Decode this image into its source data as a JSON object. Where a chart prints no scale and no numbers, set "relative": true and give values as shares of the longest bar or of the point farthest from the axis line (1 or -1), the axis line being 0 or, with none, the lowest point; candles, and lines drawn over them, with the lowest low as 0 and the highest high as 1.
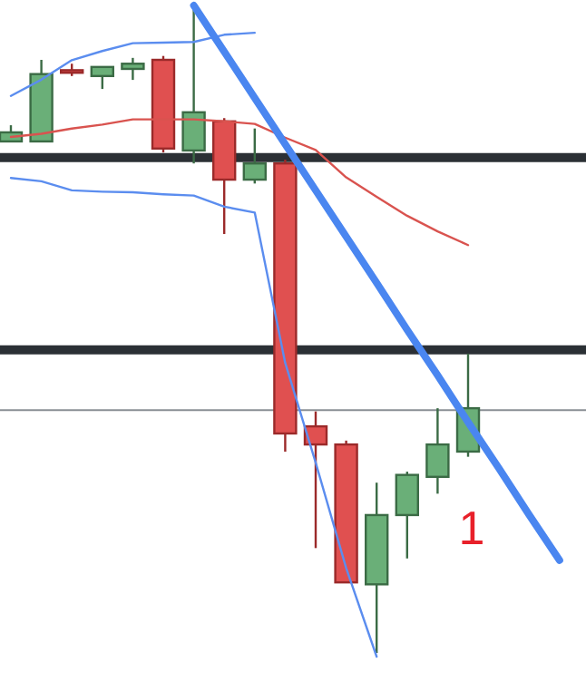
{
  "chart_data": [
    {
      "type": "candlestick",
      "relative": true,
      "categories": [
        null,
        null,
        null,
        null,
        null,
        null,
        null,
        null,
        null,
        null,
        null,
        null,
        null,
        null,
        null,
        null
      ],
      "ohlc": [
        [
          0.79,
          0.815,
          0.79,
          0.804
        ],
        [
          0.79,
          0.916,
          0.79,
          0.894
        ],
        [
          0.9,
          0.91,
          0.891,
          0.896
        ],
        [
          0.891,
          0.905,
          0.871,
          0.905
        ],
        [
          0.902,
          0.919,
          0.885,
          0.91
        ],
        [
          0.916,
          0.922,
          0.773,
          0.779
        ],
        [
          0.776,
          1,
          0.756,
          0.835
        ],
        [
          0.821,
          0.826,
          0.647,
          0.731
        ],
        [
          0.731,
          0.81,
          0.725,
          0.756
        ],
        [
          0.756,
          0.762,
          0.311,
          0.339
        ],
        [
          0.35,
          0.373,
          0.162,
          0.322
        ],
        [
          0.322,
          0.328,
          0.109,
          0.109
        ],
        [
          0.106,
          0.263,
          0,
          0.213
        ],
        [
          0.213,
          0.28,
          0.146,
          0.275
        ],
        [
          0.272,
          0.378,
          0.246,
          0.322
        ],
        [
          0.311,
          0.462,
          0.303,
          0.378
        ]
      ],
      "ref_lines": [
        {
          "axis": "y",
          "value": 0.765,
          "color": "#2b3035"
        },
        {
          "axis": "y",
          "value": 0.468,
          "color": "#2b3035"
        },
        {
          "axis": "y",
          "value": 0.375,
          "color": "#8a8f94"
        }
      ],
      "annotations": [
        "1"
      ]
    },
    {
      "type": "line",
      "relative": true,
      "categories": [
        null,
        null,
        null,
        null,
        null,
        null,
        null,
        null,
        null,
        null,
        null,
        null,
        null,
        null,
        null,
        null,
        null,
        null,
        null
      ],
      "series": [
        {
          "color": "#5b8def",
          "values": [
            0.861,
            0.886,
            0.916,
            0.93,
            0.942,
            0.943,
            0.944,
            0.955,
            0.958,
            null,
            null,
            null,
            null,
            null,
            null,
            null,
            null,
            null,
            null
          ]
        },
        {
          "color": "#5b8def",
          "values": [
            0.735,
            0.73,
            0.716,
            0.714,
            0.713,
            0.71,
            0.708,
            0.691,
            0.682,
            0.451,
            0.298,
            0.136,
            0,
            null,
            null,
            null,
            null,
            null,
            null
          ]
        },
        {
          "color": "#d9534f",
          "values": [
            0.798,
            0.803,
            0.811,
            0.817,
            0.825,
            0.825,
            0.825,
            0.822,
            0.818,
            0.797,
            0.778,
            0.736,
            0.706,
            0.677,
            0.653,
            0.632,
            null,
            null,
            null
          ]
        },
        {
          "color": "#4a86f0",
          "values": [
            null,
            null,
            null,
            null,
            null,
            null,
            1,
            0.929,
            0.858,
            0.787,
            0.716,
            0.645,
            0.574,
            0.502,
            0.432,
            0.36,
            0.29,
            0.218,
            0.148
          ]
        }
      ]
    }
  ]
}
